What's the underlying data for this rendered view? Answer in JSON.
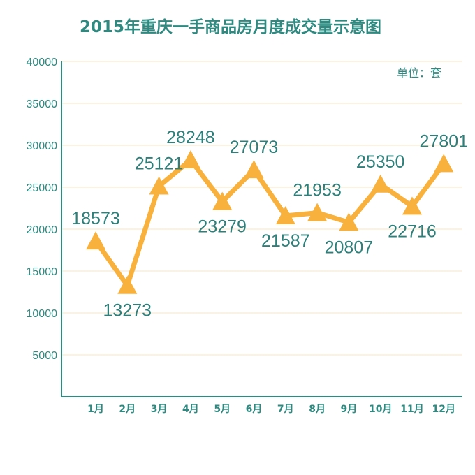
{
  "chart_data": {
    "type": "line",
    "title": "2015年重庆一手商品房月度成交量示意图",
    "unit_label": "单位：套",
    "categories": [
      "1月",
      "2月",
      "3月",
      "4月",
      "5月",
      "6月",
      "7月",
      "8月",
      "9月",
      "10月",
      "11月",
      "12月"
    ],
    "series": [
      {
        "values": [
          18573,
          13273,
          25121,
          28248,
          23279,
          27073,
          21587,
          21953,
          20807,
          25350,
          22716,
          27801
        ]
      }
    ],
    "yticks": [
      "40000",
      "35000",
      "30000",
      "25000",
      "20000",
      "15000",
      "10000",
      "5000"
    ],
    "ylim": [
      0,
      40000
    ],
    "grid": true,
    "colors": {
      "line": "#f8b13c",
      "axis": "#2e8a80",
      "grid": "#fbe3c2",
      "text": "#2e8a80"
    }
  }
}
